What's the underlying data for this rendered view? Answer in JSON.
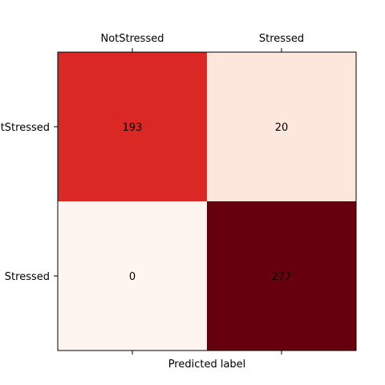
{
  "chart_data": {
    "type": "heatmap",
    "title": "",
    "xlabel": "Predicted label",
    "ylabel": "",
    "x_categories": [
      "NotStressed",
      "Stressed"
    ],
    "y_categories": [
      "NotStressed",
      "Stressed"
    ],
    "x_tick_position": "top",
    "matrix": [
      [
        193,
        20
      ],
      [
        0,
        277
      ]
    ],
    "colormap": "Reds",
    "color_scale": {
      "min_color": "#fff5f0",
      "max_color": "#67000d"
    },
    "cell_colors": [
      [
        "#da2825",
        "#fde7dc"
      ],
      [
        "#fff5f0",
        "#67000d"
      ]
    ],
    "grid": false,
    "legend": "none"
  }
}
